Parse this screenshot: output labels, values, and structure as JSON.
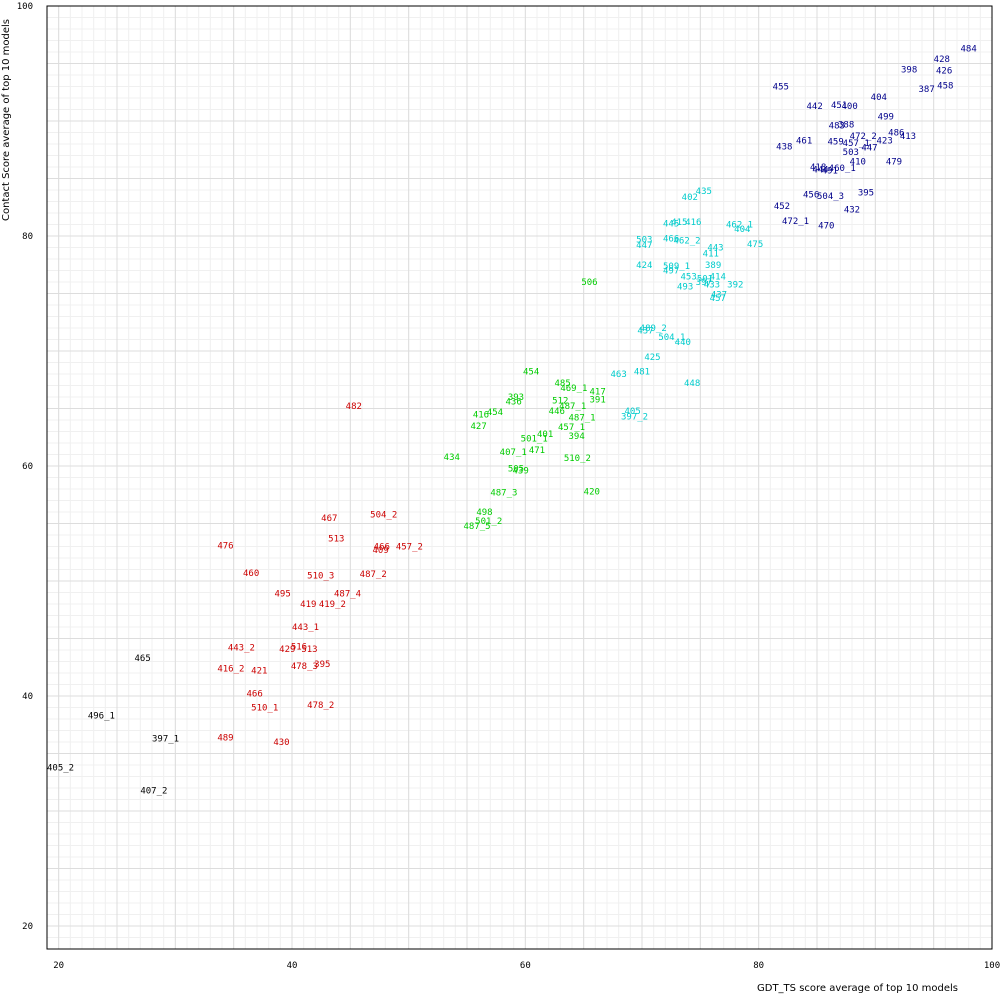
{
  "chart_data": {
    "type": "scatter",
    "xlabel": "GDT_TS score average of top 10 models",
    "ylabel": "Contact Score average of top 10 models",
    "xlim": [
      19,
      100
    ],
    "ylim": [
      18,
      100
    ],
    "x_ticks": [
      20,
      40,
      60,
      80,
      100
    ],
    "y_ticks": [
      20,
      40,
      60,
      80,
      100
    ],
    "grid": true,
    "series": [
      {
        "color": "#000000",
        "points": [
          {
            "label": "405_2",
            "x": 19.0,
            "y": 33.8
          },
          {
            "label": "407_2",
            "x": 27.0,
            "y": 31.8
          },
          {
            "label": "397_1",
            "x": 28.0,
            "y": 36.3
          },
          {
            "label": "496_1",
            "x": 22.5,
            "y": 38.3
          },
          {
            "label": "465",
            "x": 26.5,
            "y": 43.3
          }
        ]
      },
      {
        "color": "#cc0000",
        "points": [
          {
            "label": "482",
            "x": 44.6,
            "y": 65.2
          },
          {
            "label": "504_2",
            "x": 46.7,
            "y": 55.8
          },
          {
            "label": "467",
            "x": 42.5,
            "y": 55.5
          },
          {
            "label": "513",
            "x": 43.1,
            "y": 53.7
          },
          {
            "label": "476",
            "x": 33.6,
            "y": 53.1
          },
          {
            "label": "466",
            "x": 47.0,
            "y": 53.0
          },
          {
            "label": "457_2",
            "x": 48.9,
            "y": 53.0
          },
          {
            "label": "409",
            "x": 46.9,
            "y": 52.7
          },
          {
            "label": "460",
            "x": 35.8,
            "y": 50.7
          },
          {
            "label": "510_3",
            "x": 41.3,
            "y": 50.5
          },
          {
            "label": "487_2",
            "x": 45.8,
            "y": 50.6
          },
          {
            "label": "495",
            "x": 38.5,
            "y": 48.9
          },
          {
            "label": "487_4",
            "x": 43.6,
            "y": 48.9
          },
          {
            "label": "419",
            "x": 40.7,
            "y": 48.0
          },
          {
            "label": "419_2",
            "x": 42.3,
            "y": 48.0
          },
          {
            "label": "443_1",
            "x": 40.0,
            "y": 46.0
          },
          {
            "label": "443_2",
            "x": 34.5,
            "y": 44.2
          },
          {
            "label": "429",
            "x": 38.9,
            "y": 44.1
          },
          {
            "label": "516",
            "x": 39.9,
            "y": 44.3
          },
          {
            "label": "513",
            "x": 40.8,
            "y": 44.1
          },
          {
            "label": "416_2",
            "x": 33.6,
            "y": 42.4
          },
          {
            "label": "421",
            "x": 36.5,
            "y": 42.2
          },
          {
            "label": "478_3",
            "x": 39.9,
            "y": 42.6
          },
          {
            "label": "395",
            "x": 41.9,
            "y": 42.8
          },
          {
            "label": "466",
            "x": 36.1,
            "y": 40.2
          },
          {
            "label": "510_1",
            "x": 36.5,
            "y": 39.0
          },
          {
            "label": "478_2",
            "x": 41.3,
            "y": 39.2
          },
          {
            "label": "489",
            "x": 33.6,
            "y": 36.4
          },
          {
            "label": "430",
            "x": 38.4,
            "y": 36.0
          }
        ]
      },
      {
        "color": "#00cc00",
        "points": [
          {
            "label": "506",
            "x": 64.8,
            "y": 76.0
          },
          {
            "label": "454",
            "x": 59.8,
            "y": 68.2
          },
          {
            "label": "485",
            "x": 62.5,
            "y": 67.2
          },
          {
            "label": "469_1",
            "x": 63.0,
            "y": 66.8
          },
          {
            "label": "417",
            "x": 65.5,
            "y": 66.5
          },
          {
            "label": "393",
            "x": 58.5,
            "y": 66.0
          },
          {
            "label": "436",
            "x": 58.3,
            "y": 65.6
          },
          {
            "label": "512",
            "x": 62.3,
            "y": 65.7
          },
          {
            "label": "391",
            "x": 65.5,
            "y": 65.8
          },
          {
            "label": "487_1",
            "x": 62.9,
            "y": 65.2
          },
          {
            "label": "446",
            "x": 62.0,
            "y": 64.8
          },
          {
            "label": "416",
            "x": 55.5,
            "y": 64.5
          },
          {
            "label": "454",
            "x": 56.7,
            "y": 64.7
          },
          {
            "label": "487_1",
            "x": 63.7,
            "y": 64.2
          },
          {
            "label": "427",
            "x": 55.3,
            "y": 63.5
          },
          {
            "label": "457_1",
            "x": 62.8,
            "y": 63.4
          },
          {
            "label": "401",
            "x": 61.0,
            "y": 62.8
          },
          {
            "label": "394",
            "x": 63.7,
            "y": 62.6
          },
          {
            "label": "501_1",
            "x": 59.6,
            "y": 62.4
          },
          {
            "label": "407_1",
            "x": 57.8,
            "y": 61.2
          },
          {
            "label": "471",
            "x": 60.3,
            "y": 61.4
          },
          {
            "label": "434",
            "x": 53.0,
            "y": 60.8
          },
          {
            "label": "510_2",
            "x": 63.3,
            "y": 60.7
          },
          {
            "label": "505",
            "x": 58.5,
            "y": 59.8
          },
          {
            "label": "439",
            "x": 58.9,
            "y": 59.6
          },
          {
            "label": "487_3",
            "x": 57.0,
            "y": 57.7
          },
          {
            "label": "420",
            "x": 65.0,
            "y": 57.8
          },
          {
            "label": "498",
            "x": 55.8,
            "y": 56.0
          },
          {
            "label": "501_2",
            "x": 55.7,
            "y": 55.2
          },
          {
            "label": "487_5",
            "x": 54.7,
            "y": 54.8
          }
        ]
      },
      {
        "color": "#00cccc",
        "points": [
          {
            "label": "435",
            "x": 74.6,
            "y": 83.9
          },
          {
            "label": "402",
            "x": 73.4,
            "y": 83.4
          },
          {
            "label": "445",
            "x": 71.8,
            "y": 81.1
          },
          {
            "label": "415",
            "x": 72.5,
            "y": 81.2
          },
          {
            "label": "416",
            "x": 73.7,
            "y": 81.2
          },
          {
            "label": "462_1",
            "x": 77.2,
            "y": 81.0
          },
          {
            "label": "404",
            "x": 77.9,
            "y": 80.6
          },
          {
            "label": "503",
            "x": 69.5,
            "y": 79.7
          },
          {
            "label": "466",
            "x": 71.8,
            "y": 79.8
          },
          {
            "label": "462_2",
            "x": 72.7,
            "y": 79.6
          },
          {
            "label": "447",
            "x": 69.5,
            "y": 79.2
          },
          {
            "label": "475",
            "x": 79.0,
            "y": 79.3
          },
          {
            "label": "443",
            "x": 75.6,
            "y": 79.0
          },
          {
            "label": "411",
            "x": 75.2,
            "y": 78.5
          },
          {
            "label": "424",
            "x": 69.5,
            "y": 77.5
          },
          {
            "label": "509_1",
            "x": 71.8,
            "y": 77.4
          },
          {
            "label": "497",
            "x": 71.8,
            "y": 77.0
          },
          {
            "label": "389",
            "x": 75.4,
            "y": 77.5
          },
          {
            "label": "453",
            "x": 73.3,
            "y": 76.5
          },
          {
            "label": "501",
            "x": 74.7,
            "y": 76.3
          },
          {
            "label": "414",
            "x": 75.8,
            "y": 76.5
          },
          {
            "label": "397",
            "x": 74.6,
            "y": 76.0
          },
          {
            "label": "433",
            "x": 75.3,
            "y": 75.8
          },
          {
            "label": "392",
            "x": 77.3,
            "y": 75.8
          },
          {
            "label": "493",
            "x": 73.0,
            "y": 75.6
          },
          {
            "label": "437",
            "x": 75.9,
            "y": 74.9
          },
          {
            "label": "457",
            "x": 75.8,
            "y": 74.6
          },
          {
            "label": "489_2",
            "x": 69.8,
            "y": 72.0
          },
          {
            "label": "437",
            "x": 69.6,
            "y": 71.8
          },
          {
            "label": "504_1",
            "x": 71.4,
            "y": 71.2
          },
          {
            "label": "440",
            "x": 72.8,
            "y": 70.8
          },
          {
            "label": "425",
            "x": 70.2,
            "y": 69.5
          },
          {
            "label": "481",
            "x": 69.3,
            "y": 68.2
          },
          {
            "label": "463",
            "x": 67.3,
            "y": 68.0
          },
          {
            "label": "448",
            "x": 73.6,
            "y": 67.2
          },
          {
            "label": "405",
            "x": 68.5,
            "y": 64.8
          },
          {
            "label": "397_2",
            "x": 68.2,
            "y": 64.3
          }
        ]
      },
      {
        "color": "#00008b",
        "points": [
          {
            "label": "484",
            "x": 97.3,
            "y": 96.3
          },
          {
            "label": "428",
            "x": 95.0,
            "y": 95.4
          },
          {
            "label": "426",
            "x": 95.2,
            "y": 94.4
          },
          {
            "label": "398",
            "x": 92.2,
            "y": 94.5
          },
          {
            "label": "458",
            "x": 95.3,
            "y": 93.1
          },
          {
            "label": "387",
            "x": 93.7,
            "y": 92.8
          },
          {
            "label": "455",
            "x": 81.2,
            "y": 93.0
          },
          {
            "label": "404",
            "x": 89.6,
            "y": 92.1
          },
          {
            "label": "442",
            "x": 84.1,
            "y": 91.3
          },
          {
            "label": "451",
            "x": 86.2,
            "y": 91.4
          },
          {
            "label": "400",
            "x": 87.1,
            "y": 91.3
          },
          {
            "label": "499",
            "x": 90.2,
            "y": 90.4
          },
          {
            "label": "483",
            "x": 86.0,
            "y": 89.6
          },
          {
            "label": "388",
            "x": 86.8,
            "y": 89.7
          },
          {
            "label": "472_2",
            "x": 87.8,
            "y": 88.7
          },
          {
            "label": "486",
            "x": 91.1,
            "y": 89.0
          },
          {
            "label": "413",
            "x": 92.1,
            "y": 88.7
          },
          {
            "label": "461",
            "x": 83.2,
            "y": 88.3
          },
          {
            "label": "459",
            "x": 85.9,
            "y": 88.2
          },
          {
            "label": "457_1",
            "x": 87.2,
            "y": 88.1
          },
          {
            "label": "423",
            "x": 90.1,
            "y": 88.3
          },
          {
            "label": "438",
            "x": 81.5,
            "y": 87.8
          },
          {
            "label": "447",
            "x": 88.8,
            "y": 87.7
          },
          {
            "label": "503",
            "x": 87.2,
            "y": 87.3
          },
          {
            "label": "410",
            "x": 87.8,
            "y": 86.5
          },
          {
            "label": "479",
            "x": 90.9,
            "y": 86.5
          },
          {
            "label": "418",
            "x": 84.4,
            "y": 86.0
          },
          {
            "label": "444",
            "x": 84.6,
            "y": 85.8
          },
          {
            "label": "491",
            "x": 85.4,
            "y": 85.7
          },
          {
            "label": "460_1",
            "x": 86.0,
            "y": 85.9
          },
          {
            "label": "395",
            "x": 88.5,
            "y": 83.8
          },
          {
            "label": "456",
            "x": 83.8,
            "y": 83.6
          },
          {
            "label": "504_3",
            "x": 85.0,
            "y": 83.5
          },
          {
            "label": "452",
            "x": 81.3,
            "y": 82.6
          },
          {
            "label": "432",
            "x": 87.3,
            "y": 82.3
          },
          {
            "label": "472_1",
            "x": 82.0,
            "y": 81.3
          },
          {
            "label": "470",
            "x": 85.1,
            "y": 80.9
          }
        ]
      }
    ]
  }
}
